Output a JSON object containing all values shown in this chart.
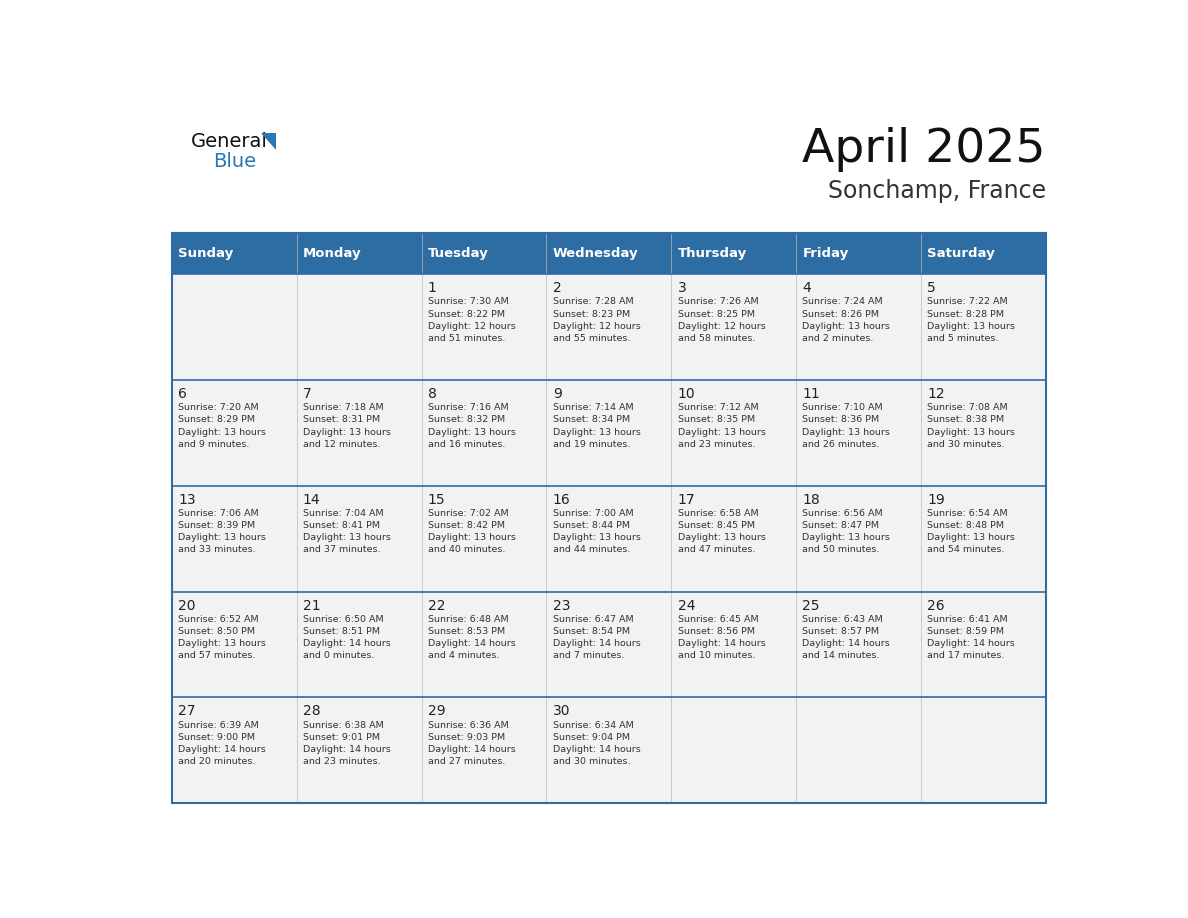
{
  "title": "April 2025",
  "subtitle": "Sonchamp, France",
  "header_bg": "#2E6DA4",
  "header_text_color": "#FFFFFF",
  "cell_bg": "#F2F2F2",
  "border_color": "#2E6DA4",
  "text_color": "#333333",
  "day_number_color": "#222222",
  "days_of_week": [
    "Sunday",
    "Monday",
    "Tuesday",
    "Wednesday",
    "Thursday",
    "Friday",
    "Saturday"
  ],
  "calendar": [
    [
      {
        "day": "",
        "info": ""
      },
      {
        "day": "",
        "info": ""
      },
      {
        "day": "1",
        "info": "Sunrise: 7:30 AM\nSunset: 8:22 PM\nDaylight: 12 hours\nand 51 minutes."
      },
      {
        "day": "2",
        "info": "Sunrise: 7:28 AM\nSunset: 8:23 PM\nDaylight: 12 hours\nand 55 minutes."
      },
      {
        "day": "3",
        "info": "Sunrise: 7:26 AM\nSunset: 8:25 PM\nDaylight: 12 hours\nand 58 minutes."
      },
      {
        "day": "4",
        "info": "Sunrise: 7:24 AM\nSunset: 8:26 PM\nDaylight: 13 hours\nand 2 minutes."
      },
      {
        "day": "5",
        "info": "Sunrise: 7:22 AM\nSunset: 8:28 PM\nDaylight: 13 hours\nand 5 minutes."
      }
    ],
    [
      {
        "day": "6",
        "info": "Sunrise: 7:20 AM\nSunset: 8:29 PM\nDaylight: 13 hours\nand 9 minutes."
      },
      {
        "day": "7",
        "info": "Sunrise: 7:18 AM\nSunset: 8:31 PM\nDaylight: 13 hours\nand 12 minutes."
      },
      {
        "day": "8",
        "info": "Sunrise: 7:16 AM\nSunset: 8:32 PM\nDaylight: 13 hours\nand 16 minutes."
      },
      {
        "day": "9",
        "info": "Sunrise: 7:14 AM\nSunset: 8:34 PM\nDaylight: 13 hours\nand 19 minutes."
      },
      {
        "day": "10",
        "info": "Sunrise: 7:12 AM\nSunset: 8:35 PM\nDaylight: 13 hours\nand 23 minutes."
      },
      {
        "day": "11",
        "info": "Sunrise: 7:10 AM\nSunset: 8:36 PM\nDaylight: 13 hours\nand 26 minutes."
      },
      {
        "day": "12",
        "info": "Sunrise: 7:08 AM\nSunset: 8:38 PM\nDaylight: 13 hours\nand 30 minutes."
      }
    ],
    [
      {
        "day": "13",
        "info": "Sunrise: 7:06 AM\nSunset: 8:39 PM\nDaylight: 13 hours\nand 33 minutes."
      },
      {
        "day": "14",
        "info": "Sunrise: 7:04 AM\nSunset: 8:41 PM\nDaylight: 13 hours\nand 37 minutes."
      },
      {
        "day": "15",
        "info": "Sunrise: 7:02 AM\nSunset: 8:42 PM\nDaylight: 13 hours\nand 40 minutes."
      },
      {
        "day": "16",
        "info": "Sunrise: 7:00 AM\nSunset: 8:44 PM\nDaylight: 13 hours\nand 44 minutes."
      },
      {
        "day": "17",
        "info": "Sunrise: 6:58 AM\nSunset: 8:45 PM\nDaylight: 13 hours\nand 47 minutes."
      },
      {
        "day": "18",
        "info": "Sunrise: 6:56 AM\nSunset: 8:47 PM\nDaylight: 13 hours\nand 50 minutes."
      },
      {
        "day": "19",
        "info": "Sunrise: 6:54 AM\nSunset: 8:48 PM\nDaylight: 13 hours\nand 54 minutes."
      }
    ],
    [
      {
        "day": "20",
        "info": "Sunrise: 6:52 AM\nSunset: 8:50 PM\nDaylight: 13 hours\nand 57 minutes."
      },
      {
        "day": "21",
        "info": "Sunrise: 6:50 AM\nSunset: 8:51 PM\nDaylight: 14 hours\nand 0 minutes."
      },
      {
        "day": "22",
        "info": "Sunrise: 6:48 AM\nSunset: 8:53 PM\nDaylight: 14 hours\nand 4 minutes."
      },
      {
        "day": "23",
        "info": "Sunrise: 6:47 AM\nSunset: 8:54 PM\nDaylight: 14 hours\nand 7 minutes."
      },
      {
        "day": "24",
        "info": "Sunrise: 6:45 AM\nSunset: 8:56 PM\nDaylight: 14 hours\nand 10 minutes."
      },
      {
        "day": "25",
        "info": "Sunrise: 6:43 AM\nSunset: 8:57 PM\nDaylight: 14 hours\nand 14 minutes."
      },
      {
        "day": "26",
        "info": "Sunrise: 6:41 AM\nSunset: 8:59 PM\nDaylight: 14 hours\nand 17 minutes."
      }
    ],
    [
      {
        "day": "27",
        "info": "Sunrise: 6:39 AM\nSunset: 9:00 PM\nDaylight: 14 hours\nand 20 minutes."
      },
      {
        "day": "28",
        "info": "Sunrise: 6:38 AM\nSunset: 9:01 PM\nDaylight: 14 hours\nand 23 minutes."
      },
      {
        "day": "29",
        "info": "Sunrise: 6:36 AM\nSunset: 9:03 PM\nDaylight: 14 hours\nand 27 minutes."
      },
      {
        "day": "30",
        "info": "Sunrise: 6:34 AM\nSunset: 9:04 PM\nDaylight: 14 hours\nand 30 minutes."
      },
      {
        "day": "",
        "info": ""
      },
      {
        "day": "",
        "info": ""
      },
      {
        "day": "",
        "info": ""
      }
    ]
  ],
  "logo_general_color": "#1a1a1a",
  "logo_blue_color": "#2778B5"
}
